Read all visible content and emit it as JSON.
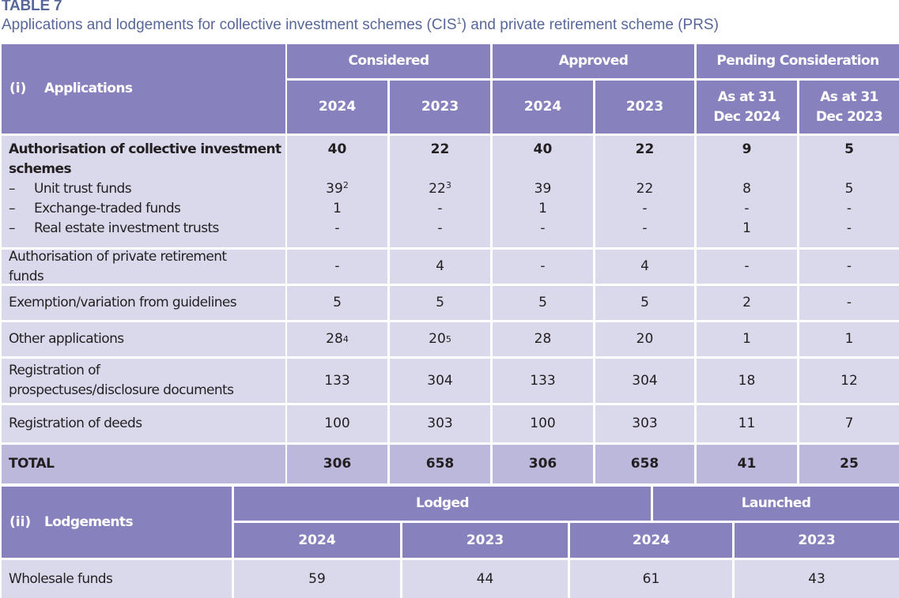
{
  "table_label": "TABLE 7",
  "subtitle": {
    "before": "Applications and lodgements for collective investment schemes (CIS",
    "footnote": "1",
    "after": ") and private retirement scheme (PRS)"
  },
  "applications": {
    "section_num": "(i)",
    "section_title": "Applications",
    "groups": [
      "Considered",
      "Approved",
      "Pending Consideration"
    ],
    "subheaders": [
      "2024",
      "2023",
      "2024",
      "2023",
      "As at 31 Dec 2024",
      "As at 31 Dec 2023"
    ],
    "cis_group": {
      "label": "Authorisation of collective investment schemes",
      "values": [
        "40",
        "22",
        "40",
        "22",
        "9",
        "5"
      ],
      "dash": "–",
      "subrows": [
        {
          "label": "Unit trust funds",
          "values": [
            "39",
            "22",
            "39",
            "22",
            "8",
            "5"
          ],
          "footnotes": [
            "2",
            "3",
            "",
            "",
            "",
            ""
          ]
        },
        {
          "label": "Exchange-traded funds",
          "values": [
            "1",
            "-",
            "1",
            "-",
            "-",
            "-"
          ],
          "footnotes": [
            "",
            "",
            "",
            "",
            "",
            ""
          ]
        },
        {
          "label": "Real estate investment trusts",
          "values": [
            "-",
            "-",
            "-",
            "-",
            "1",
            "-"
          ],
          "footnotes": [
            "",
            "",
            "",
            "",
            "",
            ""
          ]
        }
      ]
    },
    "rows": [
      {
        "label": "Authorisation of private retirement funds",
        "values": [
          "-",
          "4",
          "-",
          "4",
          "-",
          "-"
        ],
        "footnotes": [
          "",
          "",
          "",
          "",
          "",
          ""
        ]
      },
      {
        "label": "Exemption/variation from guidelines",
        "values": [
          "5",
          "5",
          "5",
          "5",
          "2",
          "-"
        ],
        "footnotes": [
          "",
          "",
          "",
          "",
          "",
          ""
        ]
      },
      {
        "label": "Other applications",
        "values": [
          "28",
          "20",
          "28",
          "20",
          "1",
          "1"
        ],
        "footnotes": [
          "4",
          "5",
          "",
          "",
          "",
          ""
        ]
      },
      {
        "label": "Registration of prospectuses/disclosure documents",
        "values": [
          "133",
          "304",
          "133",
          "304",
          "18",
          "12"
        ],
        "footnotes": [
          "",
          "",
          "",
          "",
          "",
          ""
        ]
      },
      {
        "label": "Registration of deeds",
        "values": [
          "100",
          "303",
          "100",
          "303",
          "11",
          "7"
        ],
        "footnotes": [
          "",
          "",
          "",
          "",
          "",
          ""
        ]
      }
    ],
    "total": {
      "label": "TOTAL",
      "values": [
        "306",
        "658",
        "306",
        "658",
        "41",
        "25"
      ]
    }
  },
  "lodgements": {
    "section_num": "(ii)",
    "section_title": "Lodgements",
    "groups": [
      "Lodged",
      "Launched"
    ],
    "subheaders": [
      "2024",
      "2023",
      "2024",
      "2023"
    ],
    "rows": [
      {
        "label": "Wholesale funds",
        "values": [
          "59",
          "44",
          "61",
          "43"
        ]
      }
    ]
  },
  "colors": {
    "header_bg": "#8782bd",
    "body_bg": "#dad9ec",
    "total_bg": "#bbb8dc",
    "title_color": "#58679a"
  }
}
